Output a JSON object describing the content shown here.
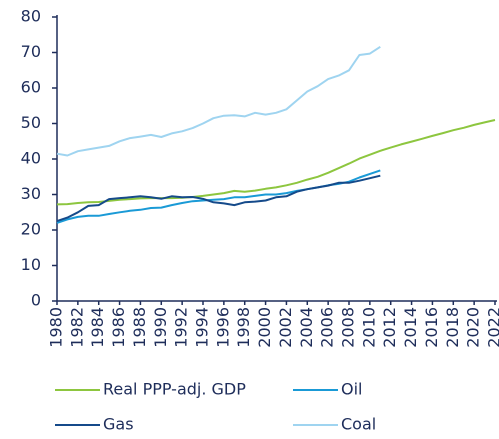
{
  "chart_data": {
    "type": "line",
    "x": [
      1980,
      1981,
      1982,
      1983,
      1984,
      1985,
      1986,
      1987,
      1988,
      1989,
      1990,
      1991,
      1992,
      1993,
      1994,
      1995,
      1996,
      1997,
      1998,
      1999,
      2000,
      2001,
      2002,
      2003,
      2004,
      2005,
      2006,
      2007,
      2008,
      2009,
      2010,
      2011,
      2012,
      2013,
      2014,
      2015,
      2016,
      2017,
      2018,
      2019,
      2020,
      2021,
      2022
    ],
    "series": [
      {
        "name": "Real PPP-adj. GDP",
        "color": "#8dc63f",
        "values": [
          27.2,
          27.3,
          27.6,
          27.8,
          27.9,
          28.2,
          28.5,
          28.7,
          28.9,
          29.0,
          29.0,
          29.0,
          29.1,
          29.3,
          29.6,
          30.0,
          30.4,
          31.0,
          30.8,
          31.1,
          31.6,
          32.0,
          32.6,
          33.3,
          34.2,
          35.0,
          36.1,
          37.4,
          38.7,
          40.1,
          41.2,
          42.3,
          43.2,
          44.1,
          44.9,
          45.7,
          46.5,
          47.3,
          48.1,
          48.8,
          49.6,
          50.3,
          51.0
        ]
      },
      {
        "name": "Oil",
        "color": "#1a9ad6",
        "values": [
          22.0,
          23.0,
          23.7,
          24.0,
          24.0,
          24.5,
          25.0,
          25.4,
          25.7,
          26.2,
          26.3,
          27.0,
          27.6,
          28.1,
          28.3,
          28.5,
          28.7,
          29.2,
          29.2,
          29.6,
          30.0,
          30.0,
          30.4,
          31.0,
          31.5,
          32.0,
          32.6,
          33.0,
          33.6,
          34.8,
          35.8,
          36.8,
          null,
          null,
          null,
          null,
          null,
          null,
          null,
          null,
          null,
          null,
          null
        ]
      },
      {
        "name": "Gas",
        "color": "#154a8a",
        "values": [
          22.5,
          23.5,
          25.0,
          26.8,
          27.0,
          28.7,
          29.0,
          29.2,
          29.5,
          29.2,
          28.8,
          29.5,
          29.2,
          29.3,
          28.8,
          27.8,
          27.5,
          27.0,
          27.8,
          28.0,
          28.3,
          29.2,
          29.5,
          30.8,
          31.5,
          32.0,
          32.5,
          33.3,
          33.3,
          33.9,
          34.6,
          35.3,
          null,
          null,
          null,
          null,
          null,
          null,
          null,
          null,
          null,
          null,
          null
        ]
      },
      {
        "name": "Coal",
        "color": "#9fd4f0",
        "values": [
          41.5,
          41.0,
          42.2,
          42.7,
          43.2,
          43.7,
          45.0,
          45.9,
          46.3,
          46.8,
          46.2,
          47.2,
          47.8,
          48.7,
          50.0,
          51.5,
          52.2,
          52.3,
          52.0,
          53.0,
          52.5,
          53.0,
          54.0,
          56.5,
          59.0,
          60.5,
          62.5,
          63.5,
          65.0,
          69.3,
          69.7,
          71.6,
          null,
          null,
          null,
          null,
          null,
          null,
          null,
          null,
          null,
          null,
          null
        ]
      }
    ],
    "xlim": [
      1980,
      2022
    ],
    "xticks": [
      1980,
      1982,
      1984,
      1986,
      1988,
      1990,
      1992,
      1994,
      1996,
      1998,
      2000,
      2002,
      2004,
      2006,
      2008,
      2010,
      2012,
      2014,
      2016,
      2018,
      2020,
      2022
    ],
    "ylim": [
      0,
      80
    ],
    "yticks": [
      0,
      10,
      20,
      30,
      40,
      50,
      60,
      70,
      80
    ],
    "grid": false
  }
}
